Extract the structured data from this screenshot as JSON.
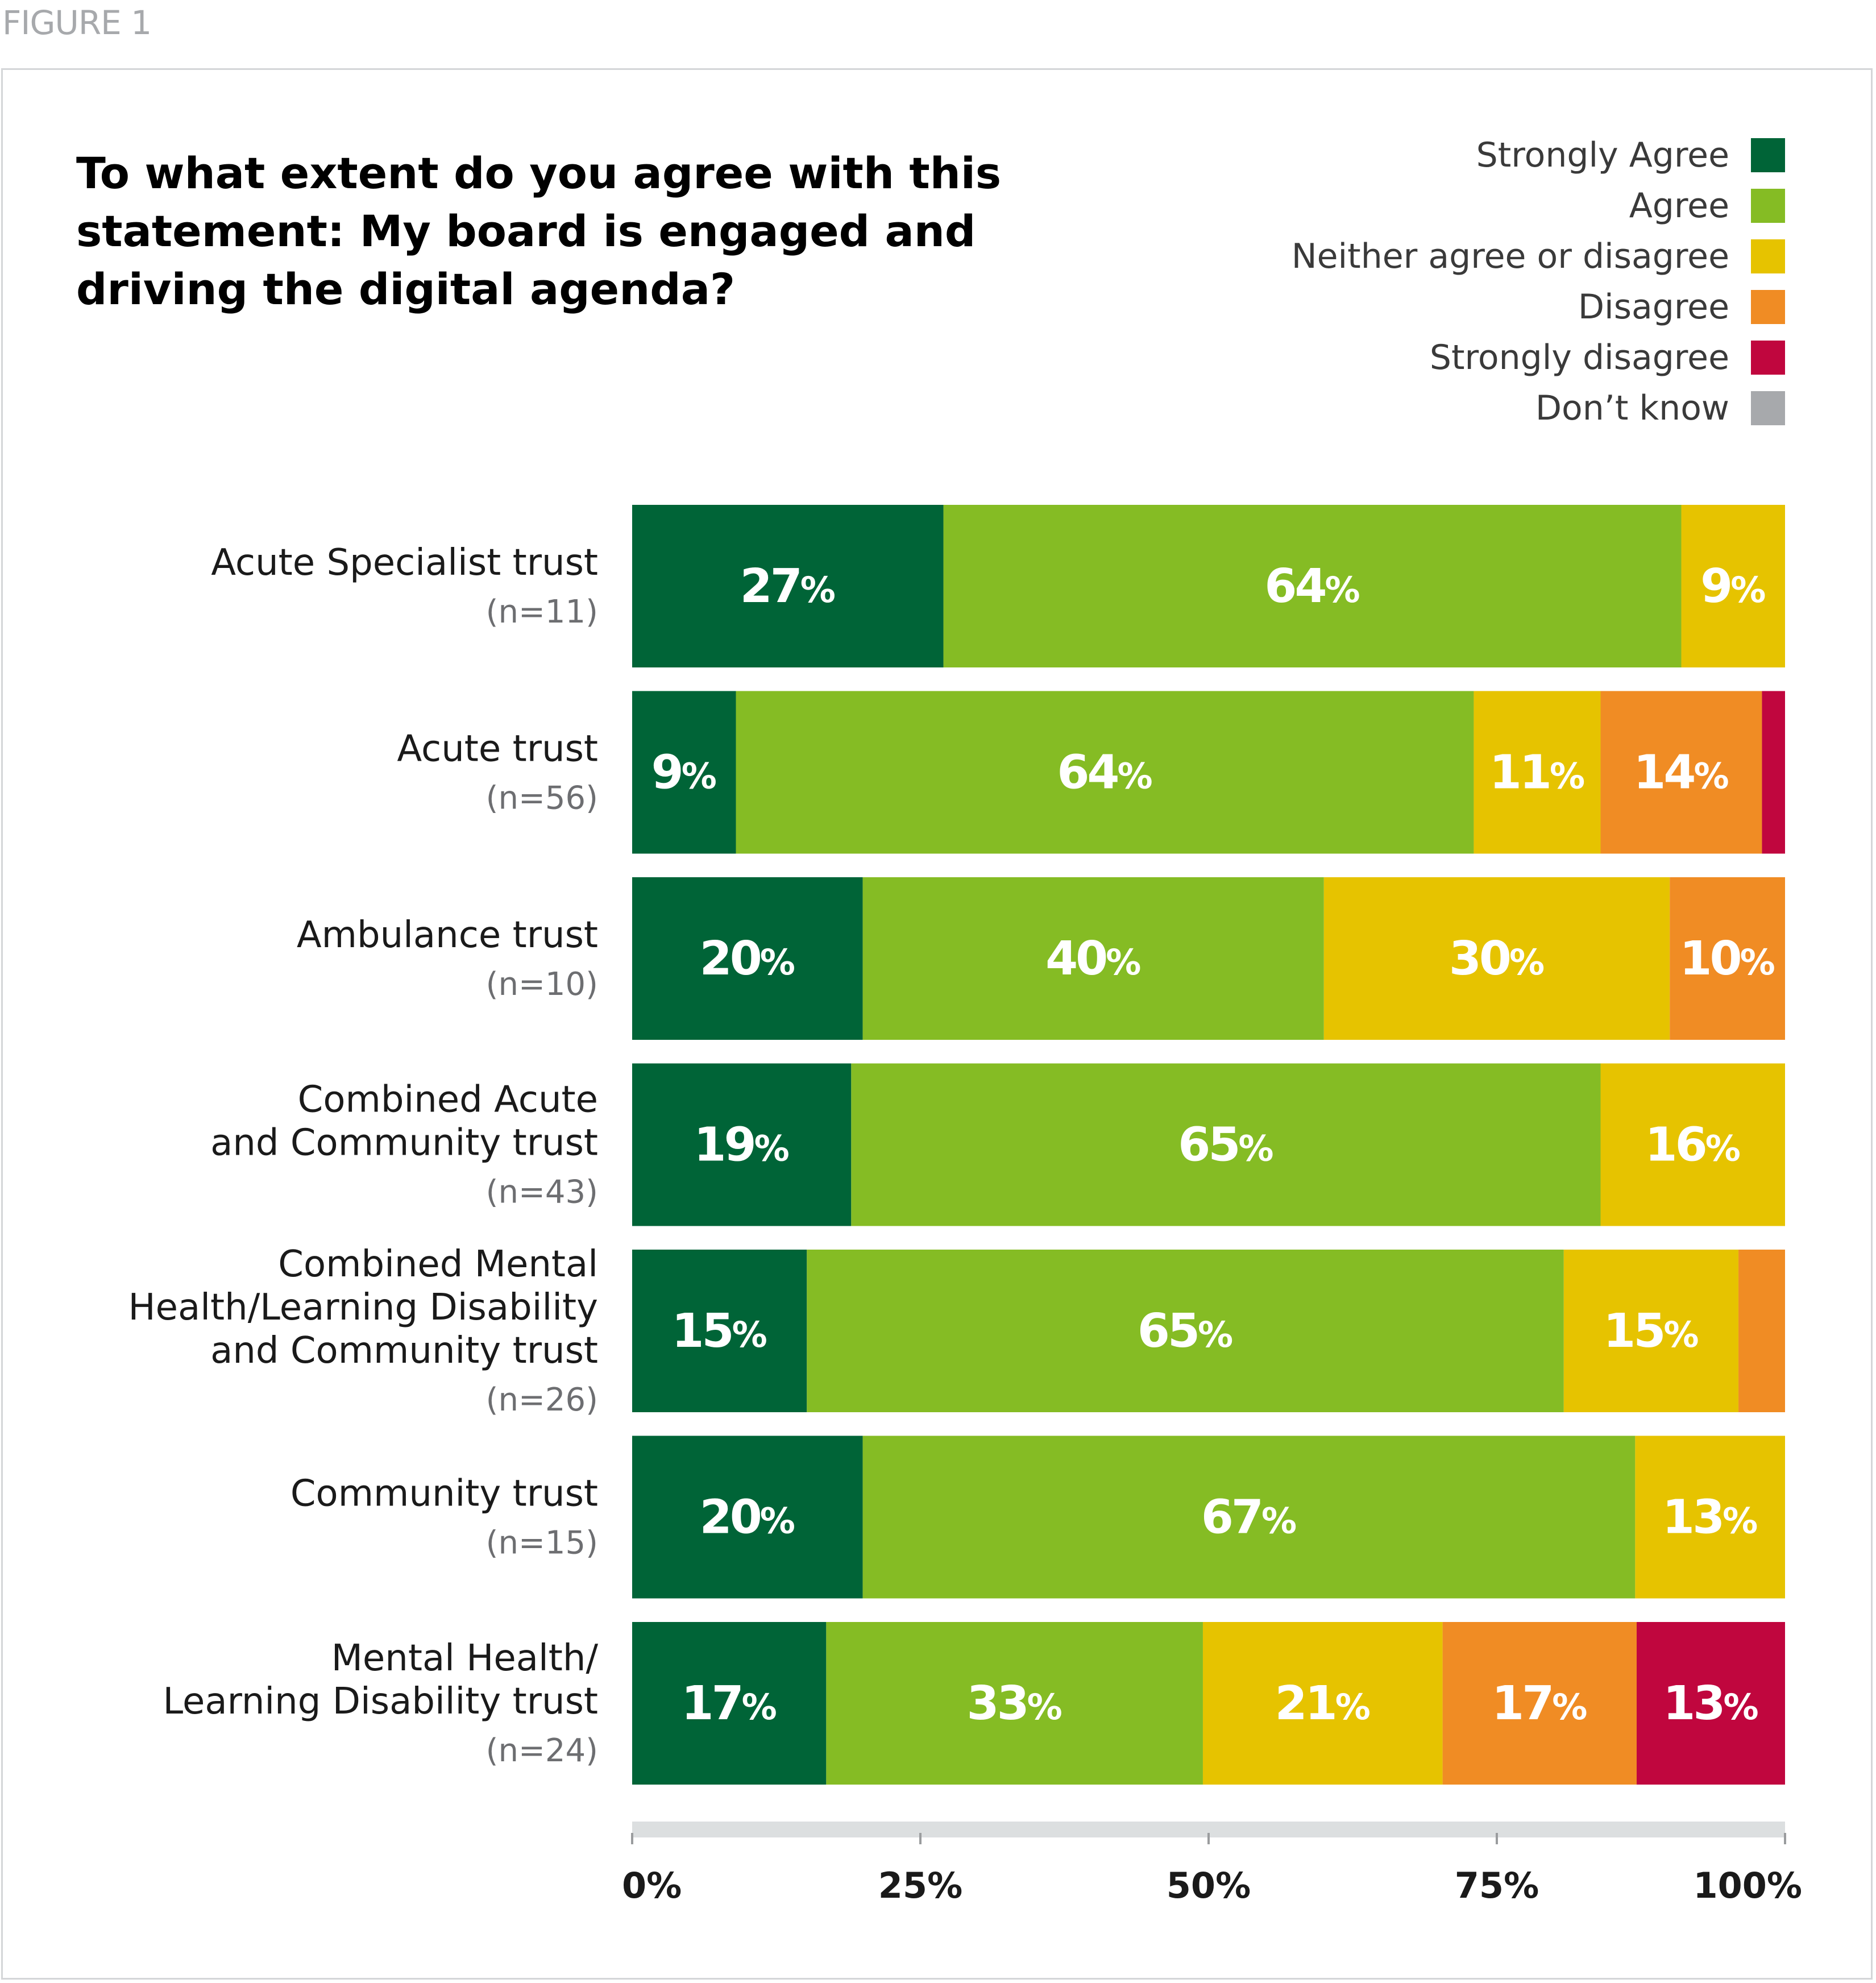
{
  "figure_label": "FIGURE 1",
  "colors": {
    "strongly_agree": "#006437",
    "agree": "#85bc24",
    "neither": "#e6c300",
    "disagree": "#f08c24",
    "strongly_disagree": "#c0063e",
    "dont_know": "#a7a9ac",
    "axis_track": "#dcdfe0"
  },
  "chart_data": {
    "type": "bar",
    "orientation": "horizontal",
    "stacked": true,
    "title": "To what extent do you agree with this statement: My board is engaged and driving the digital agenda?",
    "title_lines": [
      "To what extent do you agree with this",
      "statement: My board is engaged and",
      "driving the digital agenda?"
    ],
    "categories": [
      {
        "lines": [
          "Acute Specialist trust"
        ],
        "n": "(n=11)"
      },
      {
        "lines": [
          "Acute trust"
        ],
        "n": "(n=56)"
      },
      {
        "lines": [
          "Ambulance trust"
        ],
        "n": "(n=10)"
      },
      {
        "lines": [
          "Combined Acute",
          "and Community trust"
        ],
        "n": "(n=43)"
      },
      {
        "lines": [
          "Combined Mental",
          "Health/Learning Disability",
          "and Community trust"
        ],
        "n": "(n=26)"
      },
      {
        "lines": [
          "Community trust"
        ],
        "n": "(n=15)"
      },
      {
        "lines": [
          "Mental Health/",
          "Learning Disability trust"
        ],
        "n": "(n=24)"
      }
    ],
    "series": [
      {
        "name": "Strongly Agree",
        "color": "#006437",
        "values": [
          27,
          9,
          20,
          19,
          15,
          20,
          17
        ],
        "labels": [
          "27",
          "9",
          "20",
          "19",
          "15",
          "20",
          "17"
        ]
      },
      {
        "name": "Agree",
        "color": "#85bc24",
        "values": [
          64,
          64,
          40,
          65,
          65,
          67,
          33
        ],
        "labels": [
          "64",
          "64",
          "40",
          "65",
          "65",
          "67",
          "33"
        ]
      },
      {
        "name": "Neither agree or disagree",
        "color": "#e6c300",
        "values": [
          9,
          11,
          30,
          16,
          15,
          13,
          21
        ],
        "labels": [
          "9",
          "11",
          "30",
          "16",
          "15",
          "13",
          "21"
        ]
      },
      {
        "name": "Disagree",
        "color": "#f08c24",
        "values": [
          0,
          14,
          10,
          0,
          4,
          0,
          17
        ],
        "labels": [
          "",
          "14",
          "10",
          "",
          "",
          "",
          "17"
        ]
      },
      {
        "name": "Strongly disagree",
        "color": "#c0063e",
        "values": [
          0,
          2,
          0,
          0,
          0,
          0,
          13
        ],
        "labels": [
          "",
          "",
          "",
          "",
          "",
          "",
          "13"
        ]
      },
      {
        "name": "Don’t know",
        "color": "#a7a9ac",
        "values": [
          0,
          0,
          0,
          0,
          0,
          0,
          0
        ],
        "labels": [
          "",
          "",
          "",
          "",
          "",
          "",
          ""
        ]
      }
    ],
    "pct_suffix": "%",
    "xlim": [
      0,
      100
    ],
    "xticks": [
      0,
      25,
      50,
      75,
      100
    ],
    "xtick_labels": [
      "0%",
      "25%",
      "50%",
      "75%",
      "100%"
    ],
    "legend_position": "top-right"
  }
}
